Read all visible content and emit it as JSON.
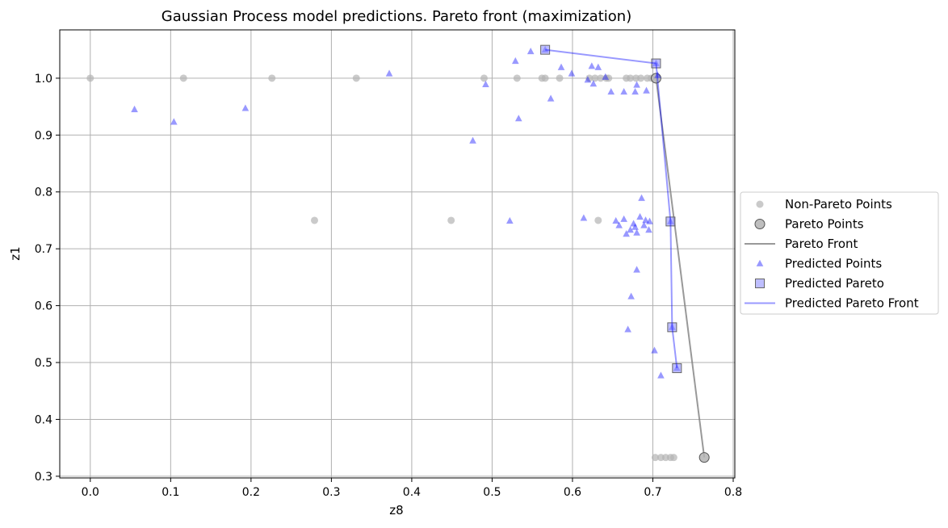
{
  "chart_data": {
    "type": "scatter",
    "title": "Gaussian Process model predictions. Pareto front (maximization)",
    "xlabel": "z8",
    "ylabel": "z1",
    "xlim": [
      -0.038,
      0.802
    ],
    "ylim": [
      0.297,
      1.085
    ],
    "xticks": [
      0.0,
      0.1,
      0.2,
      0.3,
      0.4,
      0.5,
      0.6,
      0.7,
      0.8
    ],
    "yticks": [
      0.3,
      0.4,
      0.5,
      0.6,
      0.7,
      0.8,
      0.9,
      1.0
    ],
    "grid": true,
    "legend_position": "right",
    "series": [
      {
        "name": "Non-Pareto Points",
        "marker": "circle",
        "color": "#b3b3b3",
        "points": [
          [
            0.0,
            1.0
          ],
          [
            0.116,
            1.0
          ],
          [
            0.226,
            1.0
          ],
          [
            0.331,
            1.0
          ],
          [
            0.49,
            1.0
          ],
          [
            0.531,
            1.0
          ],
          [
            0.562,
            1.0
          ],
          [
            0.566,
            1.0
          ],
          [
            0.584,
            1.0
          ],
          [
            0.621,
            1.0
          ],
          [
            0.628,
            1.0
          ],
          [
            0.635,
            1.0
          ],
          [
            0.642,
            1.0
          ],
          [
            0.645,
            1.0
          ],
          [
            0.667,
            1.0
          ],
          [
            0.672,
            1.0
          ],
          [
            0.679,
            1.0
          ],
          [
            0.685,
            1.0
          ],
          [
            0.693,
            1.0
          ],
          [
            0.698,
            1.0
          ],
          [
            0.279,
            0.75
          ],
          [
            0.449,
            0.75
          ],
          [
            0.632,
            0.75
          ],
          [
            0.703,
            0.333
          ],
          [
            0.71,
            0.333
          ],
          [
            0.716,
            0.333
          ],
          [
            0.722,
            0.333
          ],
          [
            0.726,
            0.333
          ]
        ]
      },
      {
        "name": "Pareto Points",
        "marker": "circle-large",
        "color": "#b3b3b3",
        "points": [
          [
            0.704,
            1.0
          ],
          [
            0.764,
            0.333
          ]
        ]
      },
      {
        "name": "Pareto Front",
        "marker": "line",
        "color": "#808080",
        "points": [
          [
            0.704,
            1.0
          ],
          [
            0.764,
            0.333
          ]
        ]
      },
      {
        "name": "Predicted Points",
        "marker": "triangle",
        "color": "#0000ff",
        "points": [
          [
            0.055,
            0.945
          ],
          [
            0.104,
            0.923
          ],
          [
            0.193,
            0.947
          ],
          [
            0.372,
            1.008
          ],
          [
            0.476,
            0.89
          ],
          [
            0.492,
            0.989
          ],
          [
            0.529,
            1.03
          ],
          [
            0.533,
            0.929
          ],
          [
            0.548,
            1.047
          ],
          [
            0.573,
            0.964
          ],
          [
            0.586,
            1.019
          ],
          [
            0.599,
            1.008
          ],
          [
            0.619,
            0.997
          ],
          [
            0.624,
            1.021
          ],
          [
            0.626,
            0.99
          ],
          [
            0.632,
            1.019
          ],
          [
            0.641,
            1.002
          ],
          [
            0.648,
            0.976
          ],
          [
            0.664,
            0.976
          ],
          [
            0.678,
            0.976
          ],
          [
            0.68,
            0.988
          ],
          [
            0.692,
            0.978
          ],
          [
            0.522,
            0.749
          ],
          [
            0.614,
            0.754
          ],
          [
            0.654,
            0.749
          ],
          [
            0.658,
            0.741
          ],
          [
            0.664,
            0.752
          ],
          [
            0.667,
            0.726
          ],
          [
            0.672,
            0.733
          ],
          [
            0.676,
            0.744
          ],
          [
            0.678,
            0.738
          ],
          [
            0.68,
            0.728
          ],
          [
            0.684,
            0.756
          ],
          [
            0.686,
            0.789
          ],
          [
            0.689,
            0.741
          ],
          [
            0.691,
            0.75
          ],
          [
            0.695,
            0.733
          ],
          [
            0.696,
            0.748
          ],
          [
            0.673,
            0.616
          ],
          [
            0.68,
            0.663
          ],
          [
            0.669,
            0.558
          ],
          [
            0.702,
            0.521
          ],
          [
            0.71,
            0.477
          ],
          [
            0.566,
            1.05
          ],
          [
            0.704,
            1.026
          ],
          [
            0.722,
            0.748
          ],
          [
            0.724,
            0.562
          ],
          [
            0.73,
            0.49
          ],
          [
            0.706,
            1.005
          ]
        ]
      },
      {
        "name": "Predicted Pareto",
        "marker": "square",
        "color": "#0000ff",
        "points": [
          [
            0.566,
            1.05
          ],
          [
            0.704,
            1.026
          ],
          [
            0.722,
            0.748
          ],
          [
            0.724,
            0.562
          ],
          [
            0.73,
            0.49
          ]
        ]
      },
      {
        "name": "Predicted Pareto Front",
        "marker": "line",
        "color": "#0000ff",
        "points": [
          [
            0.566,
            1.05
          ],
          [
            0.704,
            1.026
          ],
          [
            0.722,
            0.748
          ],
          [
            0.724,
            0.562
          ],
          [
            0.73,
            0.49
          ]
        ]
      }
    ]
  }
}
